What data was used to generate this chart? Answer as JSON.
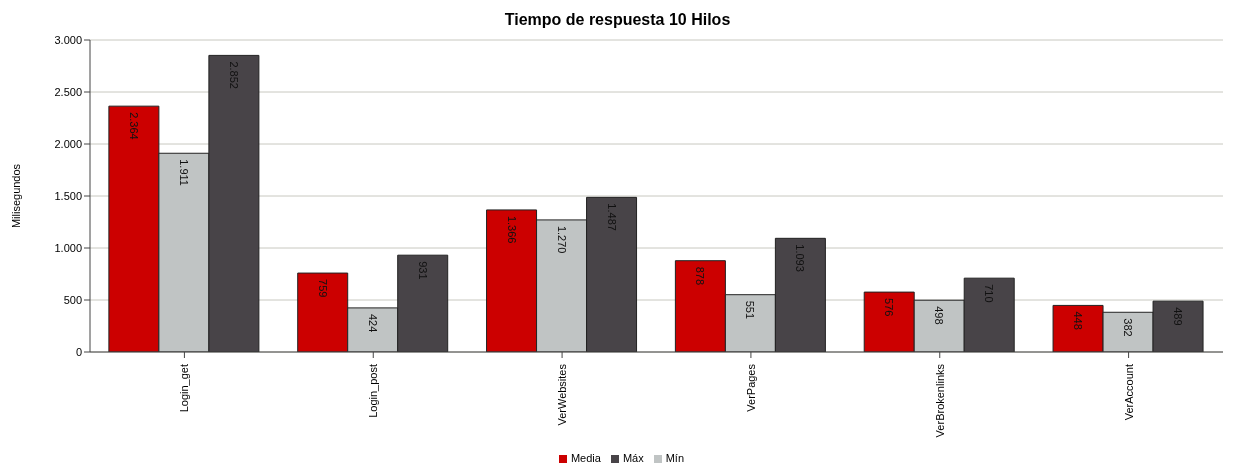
{
  "chart_data": {
    "type": "bar",
    "title": "Tiempo de respuesta 10 Hilos",
    "ylabel": "Milisegundos",
    "categories": [
      "Login_get",
      "Login_post",
      "VerWebsites",
      "VerPages",
      "VerBrokenlinks",
      "VerAccount"
    ],
    "series": [
      {
        "name": "Media",
        "color": "#cc0000",
        "values": [
          2364,
          759,
          1366,
          878,
          576,
          448
        ],
        "value_labels": [
          "2.364",
          "759",
          "1.366",
          "878",
          "576",
          "448"
        ]
      },
      {
        "name": "Mín",
        "color": "#c0c4c4",
        "values": [
          1911,
          424,
          1270,
          551,
          498,
          382
        ],
        "value_labels": [
          "1.911",
          "424",
          "1.270",
          "551",
          "498",
          "382"
        ]
      },
      {
        "name": "Máx",
        "color": "#484448",
        "values": [
          2852,
          931,
          1487,
          1093,
          710,
          489
        ],
        "value_labels": [
          "2.852",
          "931",
          "1.487",
          "1.093",
          "710",
          "489"
        ]
      }
    ],
    "ylim": [
      0,
      3000
    ],
    "yticks": [
      0,
      {
        "value": 500,
        "label": "500"
      },
      {
        "value": 1000,
        "label": "1.000"
      },
      {
        "value": 1500,
        "label": "1.500"
      },
      {
        "value": 2000,
        "label": "2.000"
      },
      {
        "value": 2500,
        "label": "2.500"
      },
      {
        "value": 3000,
        "label": "3.000"
      }
    ],
    "grid": "y",
    "legend": "bottom"
  }
}
